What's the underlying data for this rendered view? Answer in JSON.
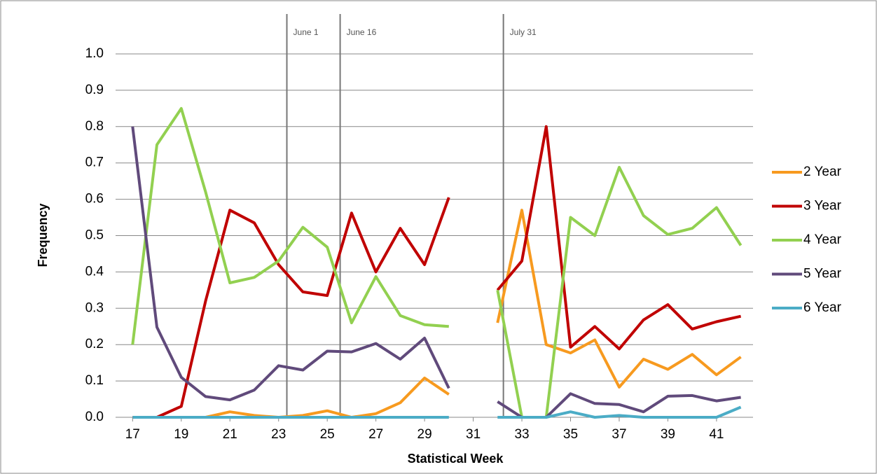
{
  "chart_data": {
    "type": "line",
    "x_label": "Statistical Week",
    "y_label": "Frequency",
    "x": [
      17,
      18,
      19,
      20,
      21,
      22,
      23,
      24,
      25,
      26,
      27,
      28,
      29,
      30,
      31,
      32,
      33,
      34,
      35,
      36,
      37,
      38,
      39,
      40,
      41,
      42
    ],
    "series": [
      {
        "name": "2 Year",
        "color": "#f79a1f",
        "values": [
          0,
          0,
          0,
          0,
          0.015,
          0.005,
          0,
          0.005,
          0.018,
          0,
          0.01,
          0.04,
          0.108,
          0.063,
          null,
          0.26,
          0.57,
          0.2,
          0.177,
          0.213,
          0.083,
          0.16,
          0.132,
          0.173,
          0.117,
          0.166
        ]
      },
      {
        "name": "3 Year",
        "color": "#c00000",
        "values": [
          0,
          0,
          0.03,
          0.32,
          0.57,
          0.535,
          0.42,
          0.345,
          0.335,
          0.562,
          0.4,
          0.52,
          0.42,
          0.605,
          null,
          0.35,
          0.43,
          0.8,
          0.193,
          0.25,
          0.188,
          0.268,
          0.31,
          0.243,
          0.263,
          0.278
        ]
      },
      {
        "name": "4 Year",
        "color": "#92d050",
        "values": [
          0.2,
          0.75,
          0.85,
          0.62,
          0.37,
          0.385,
          0.43,
          0.523,
          0.468,
          0.26,
          0.387,
          0.28,
          0.255,
          0.25,
          null,
          0.35,
          0,
          0,
          0.55,
          0.5,
          0.688,
          0.555,
          0.503,
          0.52,
          0.577,
          0.473
        ]
      },
      {
        "name": "5 Year",
        "color": "#604a7b",
        "values": [
          0.8,
          0.248,
          0.11,
          0.057,
          0.048,
          0.075,
          0.142,
          0.13,
          0.182,
          0.18,
          0.203,
          0.16,
          0.218,
          0.08,
          null,
          0.043,
          0,
          0,
          0.065,
          0.038,
          0.035,
          0.015,
          0.058,
          0.06,
          0.045,
          0.055
        ]
      },
      {
        "name": "6 Year",
        "color": "#4bacc6",
        "values": [
          0,
          0,
          0,
          0,
          0,
          0,
          0,
          0,
          0,
          0,
          0,
          0,
          0,
          0,
          null,
          0,
          0,
          0,
          0.015,
          0,
          0.005,
          0,
          0,
          0,
          0,
          0.028
        ]
      }
    ],
    "xlim": [
      16.3,
      42.5
    ],
    "xticks": [
      17,
      19,
      21,
      23,
      25,
      27,
      29,
      31,
      33,
      35,
      37,
      39,
      41
    ],
    "ylim": [
      0,
      1
    ],
    "yticks": [
      {
        "value": 0,
        "label": "0.0"
      },
      0.1,
      0.2,
      0.3,
      0.4,
      0.5,
      0.6,
      0.7,
      0.8,
      0.9,
      {
        "value": 1,
        "label": "1.0"
      }
    ],
    "grid": true,
    "legend": "right",
    "annotations": [
      {
        "label": "June 1",
        "x": 23.34
      },
      {
        "label": "June 16",
        "x": 25.53
      },
      {
        "label": "July 31",
        "x": 32.24
      }
    ]
  }
}
